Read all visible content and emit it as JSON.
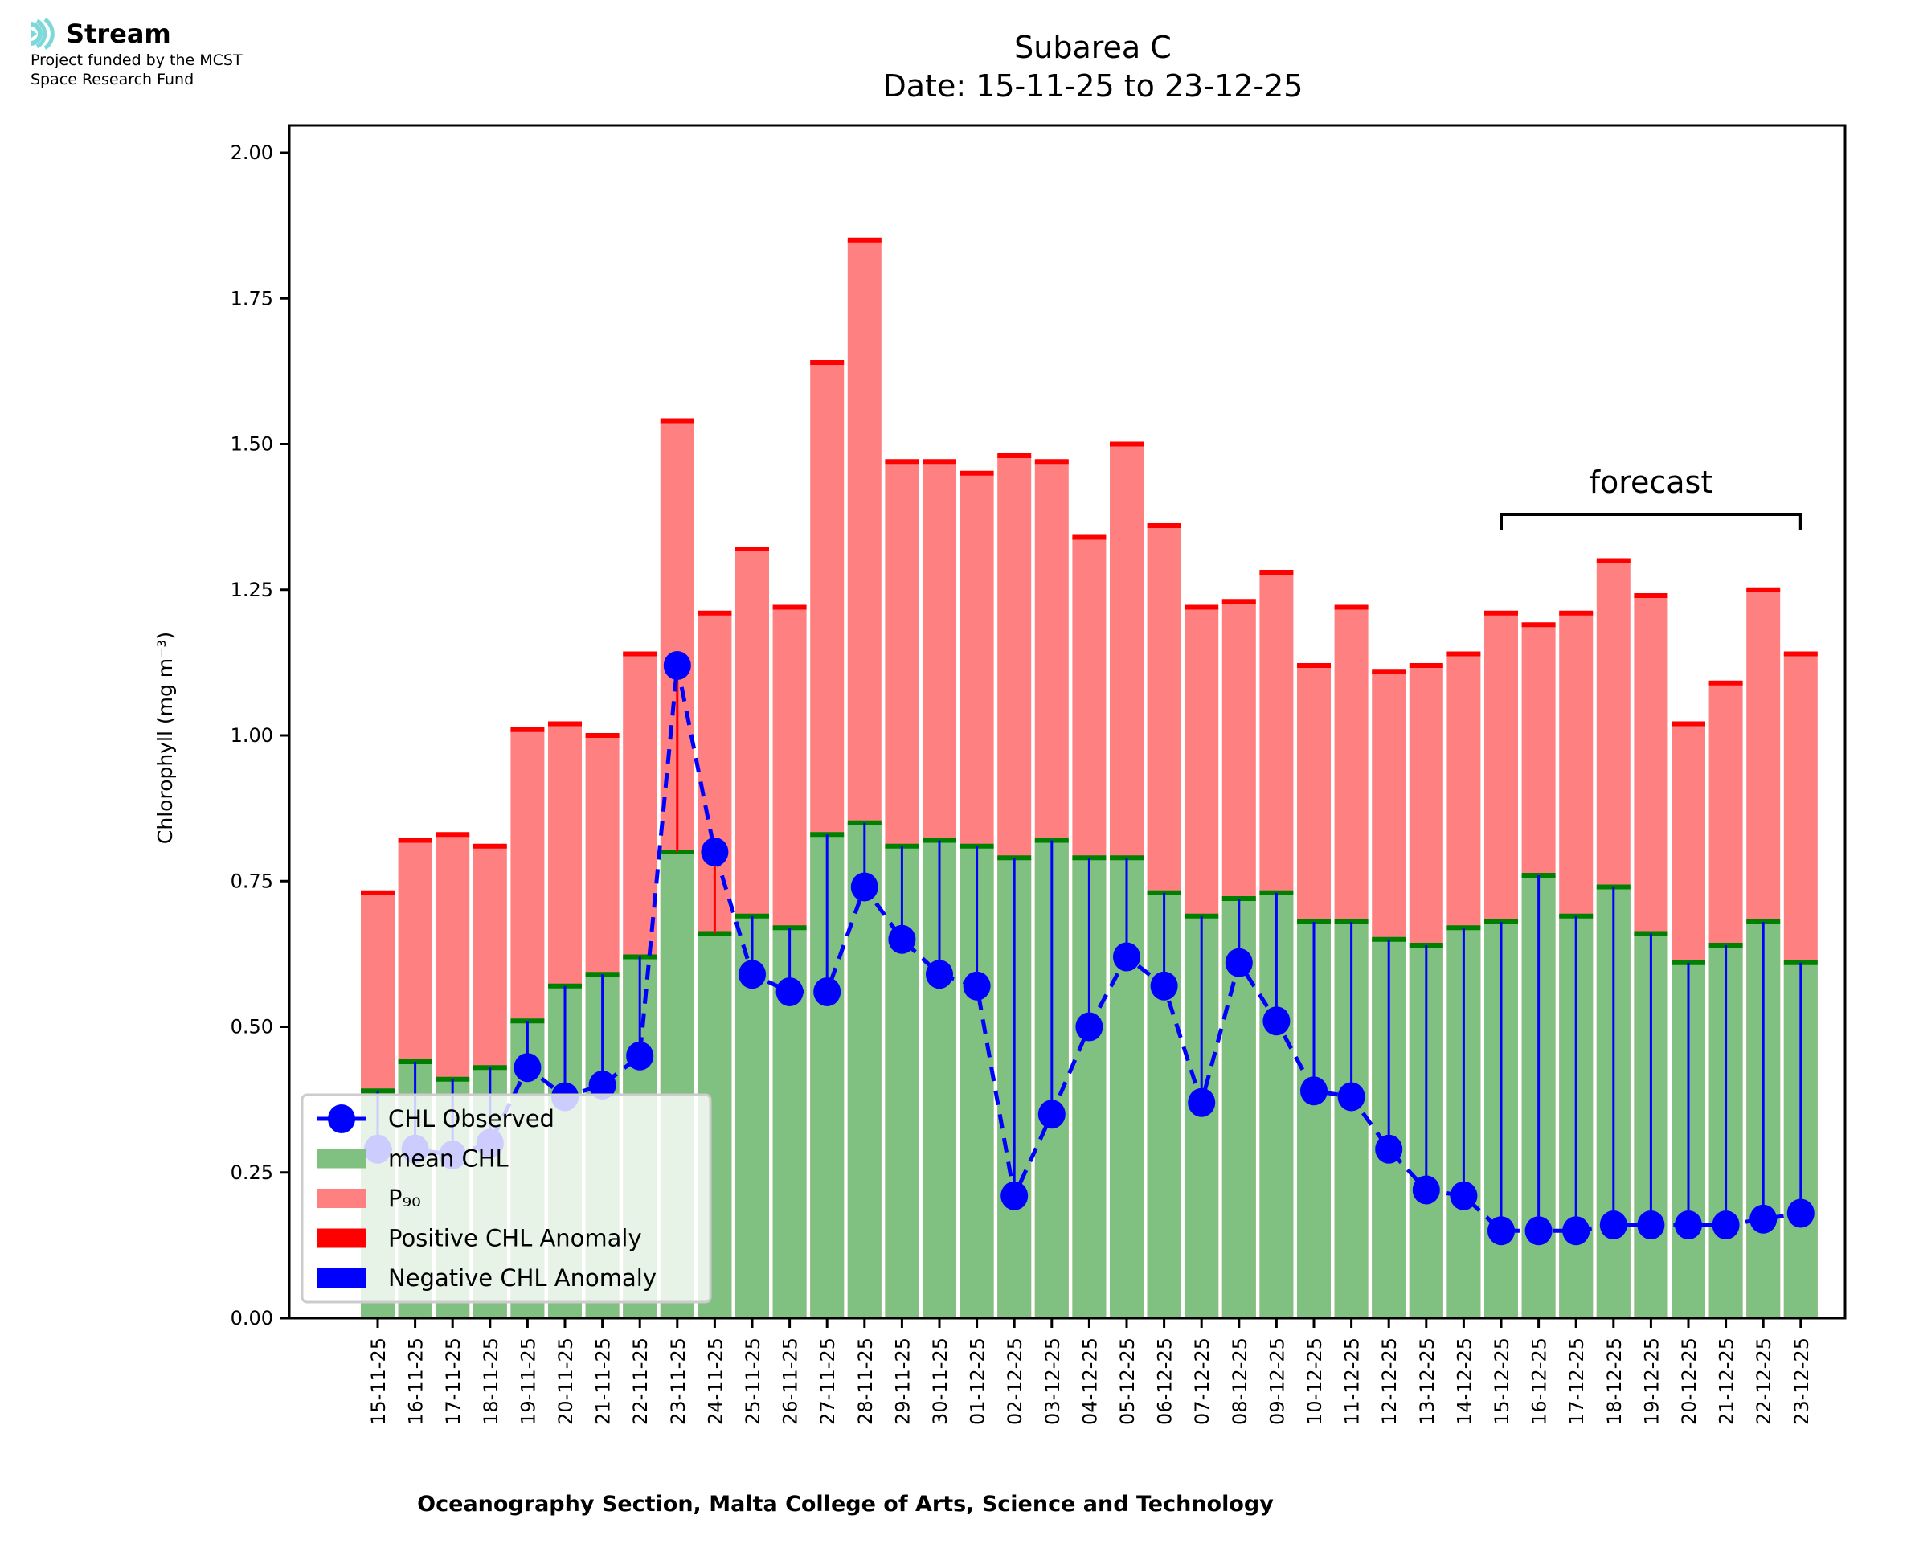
{
  "logo": {
    "icon": "stream-waves-icon",
    "name": "Stream",
    "funding_line1": "Project funded by the MCST",
    "funding_line2": "Space Research Fund",
    "accent": "#7fd8d8"
  },
  "chart_data": {
    "type": "bar",
    "title_line1": "Subarea C",
    "title_line2": "Date: 15-11-25 to 23-12-25",
    "xlabel": "Oceanography Section, Malta College of Arts, Science and Technology",
    "ylabel": "Chlorophyll (mg m⁻³)",
    "ylim": [
      0,
      2.04
    ],
    "yticks": [
      "0.00",
      "0.25",
      "0.50",
      "0.75",
      "1.00",
      "1.25",
      "1.50",
      "1.75",
      "2.00"
    ],
    "grid": false,
    "legend_position": "lower-left",
    "categories": [
      "15-11-25",
      "16-11-25",
      "17-11-25",
      "18-11-25",
      "19-11-25",
      "20-11-25",
      "21-11-25",
      "22-11-25",
      "23-11-25",
      "24-11-25",
      "25-11-25",
      "26-11-25",
      "27-11-25",
      "28-11-25",
      "29-11-25",
      "30-11-25",
      "01-12-25",
      "02-12-25",
      "03-12-25",
      "04-12-25",
      "05-12-25",
      "06-12-25",
      "07-12-25",
      "08-12-25",
      "09-12-25",
      "10-12-25",
      "11-12-25",
      "12-12-25",
      "13-12-25",
      "14-12-25",
      "15-12-25",
      "16-12-25",
      "17-12-25",
      "18-12-25",
      "19-12-25",
      "20-12-25",
      "21-12-25",
      "22-12-25",
      "23-12-25"
    ],
    "series": [
      {
        "name": "P₉₀",
        "kind": "bar",
        "color": "#ff8080",
        "values": [
          0.73,
          0.82,
          0.83,
          0.81,
          1.01,
          1.02,
          1.0,
          1.14,
          1.54,
          1.21,
          1.32,
          1.22,
          1.64,
          1.85,
          1.47,
          1.47,
          1.45,
          1.48,
          1.47,
          1.34,
          1.5,
          1.36,
          1.22,
          1.23,
          1.28,
          1.12,
          1.22,
          1.11,
          1.12,
          1.14,
          1.21,
          1.19,
          1.21,
          1.3,
          1.24,
          1.02,
          1.09,
          1.25,
          1.14
        ]
      },
      {
        "name": "mean CHL",
        "kind": "bar",
        "color": "#80c080",
        "values": [
          0.39,
          0.44,
          0.41,
          0.43,
          0.51,
          0.57,
          0.59,
          0.62,
          0.8,
          0.66,
          0.69,
          0.67,
          0.83,
          0.85,
          0.81,
          0.82,
          0.81,
          0.79,
          0.82,
          0.79,
          0.79,
          0.73,
          0.69,
          0.72,
          0.73,
          0.68,
          0.68,
          0.65,
          0.64,
          0.67,
          0.68,
          0.76,
          0.69,
          0.74,
          0.66,
          0.61,
          0.64,
          0.68,
          0.61
        ]
      },
      {
        "name": "CHL Observed",
        "kind": "line-marker",
        "color": "#0000ff",
        "linestyle": "dashed",
        "values": [
          0.29,
          0.29,
          0.28,
          0.3,
          0.43,
          0.38,
          0.4,
          0.45,
          1.12,
          0.8,
          0.59,
          0.56,
          0.56,
          0.74,
          0.65,
          0.59,
          0.57,
          0.21,
          0.35,
          0.5,
          0.62,
          0.57,
          0.37,
          0.61,
          0.51,
          0.39,
          0.38,
          0.29,
          0.22,
          0.21,
          0.15,
          0.15,
          0.15,
          0.16,
          0.16,
          0.16,
          0.16,
          0.17,
          0.18
        ]
      }
    ],
    "legend": [
      {
        "label": "CHL Observed",
        "type": "line-marker",
        "color": "#0000ff"
      },
      {
        "label": "mean CHL",
        "type": "patch",
        "color": "#80c080"
      },
      {
        "label": "P₉₀",
        "type": "patch",
        "color": "#ff8080"
      },
      {
        "label": "Positive CHL Anomaly",
        "type": "patch",
        "color": "#ff0000"
      },
      {
        "label": "Negative CHL Anomaly",
        "type": "patch",
        "color": "#0000ff"
      }
    ],
    "annotation": {
      "text": "forecast",
      "from": "15-12-25",
      "to": "23-12-25"
    },
    "colors": {
      "p90_cap": "#ff0000",
      "mean_cap": "#008000",
      "positive": "#ff0000",
      "negative": "#0000ff"
    }
  }
}
